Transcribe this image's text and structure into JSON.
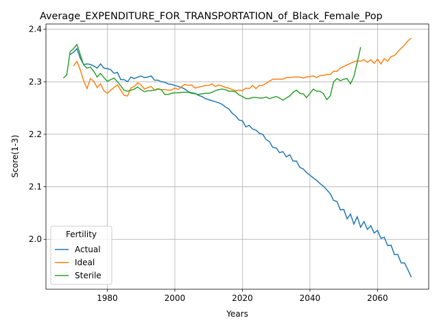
{
  "chart_data": {
    "type": "line",
    "title": "Average_EXPENDITURE_FOR_TRANSPORTATION_of_Black_Female_Pop",
    "xlabel": "Years",
    "ylabel": "Score(1-3)",
    "legend_title": "Fertility",
    "legend": "lower left",
    "grid": true,
    "xlim": [
      1961.85,
      2075.15
    ],
    "xticks": [
      1980,
      2000,
      2020,
      2040,
      2060
    ],
    "ylim": [
      1.905,
      2.41
    ],
    "yticks": [
      {
        "value": 2.0,
        "label": "2.0"
      },
      2.1,
      2.2,
      2.3,
      2.4
    ],
    "x": [
      1967,
      1968,
      1969,
      1970,
      1971,
      1972,
      1973,
      1974,
      1975,
      1976,
      1977,
      1978,
      1979,
      1980,
      1981,
      1982,
      1983,
      1984,
      1985,
      1986,
      1987,
      1988,
      1989,
      1990,
      1991,
      1992,
      1993,
      1994,
      1995,
      1996,
      1997,
      1998,
      1999,
      2000,
      2001,
      2002,
      2003,
      2004,
      2005,
      2006,
      2007,
      2008,
      2009,
      2010,
      2011,
      2012,
      2013,
      2014,
      2015,
      2016,
      2017,
      2018,
      2019,
      2020,
      2021,
      2022,
      2023,
      2024,
      2025,
      2026,
      2027,
      2028,
      2029,
      2030,
      2031,
      2032,
      2033,
      2034,
      2035,
      2036,
      2037,
      2038,
      2039,
      2040,
      2041,
      2042,
      2043,
      2044,
      2045,
      2046,
      2047,
      2048,
      2049,
      2050,
      2051,
      2052,
      2053,
      2054,
      2055,
      2056,
      2057,
      2058,
      2059,
      2060,
      2061,
      2062,
      2063,
      2064,
      2065,
      2066,
      2067,
      2068,
      2069,
      2070
    ],
    "series": [
      {
        "name": "Actual",
        "color": "#1f77b4",
        "values": [
          null,
          null,
          2.352,
          2.356,
          2.363,
          2.345,
          2.333,
          2.334,
          2.333,
          2.33,
          2.326,
          2.334,
          2.326,
          2.325,
          2.323,
          2.316,
          2.318,
          2.304,
          2.304,
          2.3,
          2.309,
          2.306,
          2.309,
          2.311,
          2.308,
          2.309,
          2.311,
          2.303,
          2.303,
          2.3,
          2.299,
          2.296,
          2.295,
          2.293,
          2.291,
          2.289,
          2.286,
          2.281,
          2.279,
          2.278,
          2.274,
          2.272,
          2.268,
          2.266,
          2.264,
          2.262,
          2.26,
          2.257,
          2.252,
          2.248,
          2.24,
          2.235,
          2.227,
          2.226,
          2.214,
          2.217,
          2.21,
          2.208,
          2.202,
          2.2,
          2.19,
          2.186,
          2.175,
          2.174,
          2.165,
          2.167,
          2.157,
          2.161,
          2.149,
          2.149,
          2.137,
          2.134,
          2.127,
          2.122,
          2.117,
          2.112,
          2.106,
          2.101,
          2.094,
          2.087,
          2.074,
          2.072,
          2.056,
          2.057,
          2.039,
          2.048,
          2.029,
          2.043,
          2.023,
          2.034,
          2.019,
          2.026,
          2.012,
          2.017,
          2.002,
          2.004,
          1.988,
          1.989,
          1.971,
          1.971,
          1.955,
          1.955,
          1.942,
          1.928
        ]
      },
      {
        "name": "Ideal",
        "color": "#ff7f0e",
        "values": [
          null,
          null,
          null,
          2.33,
          2.339,
          2.323,
          2.302,
          2.287,
          2.306,
          2.301,
          2.289,
          2.296,
          2.283,
          2.278,
          2.284,
          2.289,
          2.294,
          2.284,
          2.274,
          2.273,
          2.288,
          2.291,
          2.298,
          2.294,
          2.286,
          2.289,
          2.291,
          2.284,
          2.287,
          2.285,
          2.285,
          2.284,
          2.284,
          2.288,
          2.285,
          2.291,
          2.295,
          2.293,
          2.294,
          2.288,
          2.29,
          2.291,
          2.293,
          2.293,
          2.296,
          2.291,
          2.294,
          2.292,
          2.289,
          2.288,
          2.285,
          2.283,
          2.284,
          2.283,
          2.288,
          2.287,
          2.293,
          2.287,
          2.293,
          2.293,
          2.297,
          2.301,
          2.305,
          2.305,
          2.305,
          2.305,
          2.308,
          2.308,
          2.309,
          2.309,
          2.309,
          2.307,
          2.309,
          2.31,
          2.311,
          2.308,
          2.312,
          2.312,
          2.314,
          2.314,
          2.32,
          2.32,
          2.326,
          2.329,
          2.332,
          2.335,
          2.338,
          2.34,
          2.339,
          2.342,
          2.337,
          2.342,
          2.335,
          2.343,
          2.334,
          2.344,
          2.339,
          2.348,
          2.35,
          2.357,
          2.364,
          2.37,
          2.378,
          2.383
        ]
      },
      {
        "name": "Sterile",
        "color": "#2ca02c",
        "values": [
          2.307,
          2.313,
          2.357,
          2.363,
          2.371,
          2.352,
          2.332,
          2.326,
          2.328,
          2.32,
          2.309,
          2.316,
          2.308,
          2.301,
          2.304,
          2.307,
          2.3,
          2.292,
          2.284,
          2.282,
          2.284,
          2.286,
          2.29,
          2.285,
          2.281,
          2.283,
          2.283,
          2.284,
          2.286,
          2.285,
          2.276,
          2.276,
          2.278,
          2.279,
          2.279,
          2.28,
          2.28,
          2.28,
          2.278,
          2.277,
          2.276,
          2.277,
          2.278,
          2.278,
          2.28,
          2.283,
          2.285,
          2.286,
          2.285,
          2.282,
          2.282,
          2.281,
          2.275,
          2.272,
          2.268,
          2.268,
          2.27,
          2.27,
          2.269,
          2.269,
          2.271,
          2.268,
          2.27,
          2.272,
          2.269,
          2.265,
          2.269,
          2.273,
          2.28,
          2.284,
          2.278,
          2.277,
          2.27,
          2.278,
          2.286,
          2.282,
          2.282,
          2.277,
          2.266,
          2.273,
          2.3,
          2.306,
          2.302,
          2.305,
          2.306,
          2.296,
          2.31,
          2.337,
          2.366,
          null,
          null,
          null,
          null,
          null,
          null,
          null,
          null,
          null,
          null,
          null,
          null,
          null,
          null,
          null
        ]
      }
    ]
  }
}
